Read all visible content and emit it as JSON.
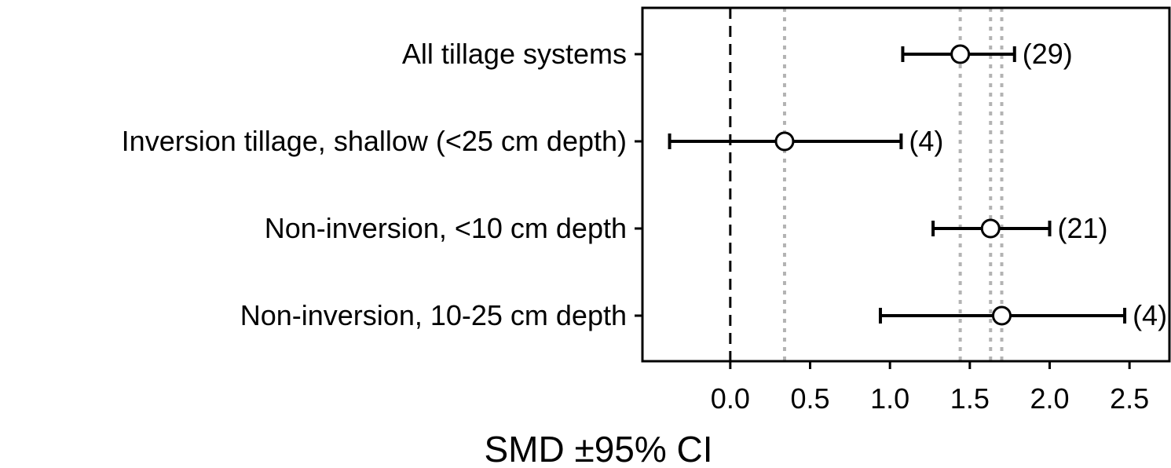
{
  "chart_data": {
    "type": "forest",
    "xlabel": "SMD ±95% CI",
    "xlim": [
      -0.55,
      2.75
    ],
    "xticks": [
      0.0,
      0.5,
      1.0,
      1.5,
      2.0,
      2.5
    ],
    "xtick_labels": [
      "0.0",
      "0.5",
      "1.0",
      "1.5",
      "2.0",
      "2.5"
    ],
    "zero_line": {
      "x": 0.0,
      "style": "dashed"
    },
    "reference_lines": [
      0.34,
      1.44,
      1.63,
      1.7
    ],
    "grid": false,
    "rows": [
      {
        "label": "All tillage systems",
        "estimate": 1.44,
        "lower": 1.08,
        "upper": 1.78,
        "n_label": "(29)"
      },
      {
        "label": "Inversion tillage, shallow (<25 cm depth)",
        "estimate": 0.34,
        "lower": -0.38,
        "upper": 1.07,
        "n_label": "(4)"
      },
      {
        "label": "Non-inversion, <10 cm depth",
        "estimate": 1.63,
        "lower": 1.27,
        "upper": 2.0,
        "n_label": "(21)"
      },
      {
        "label": "Non-inversion, 10-25 cm depth",
        "estimate": 1.7,
        "lower": 0.94,
        "upper": 2.47,
        "n_label": "(4)"
      }
    ]
  }
}
